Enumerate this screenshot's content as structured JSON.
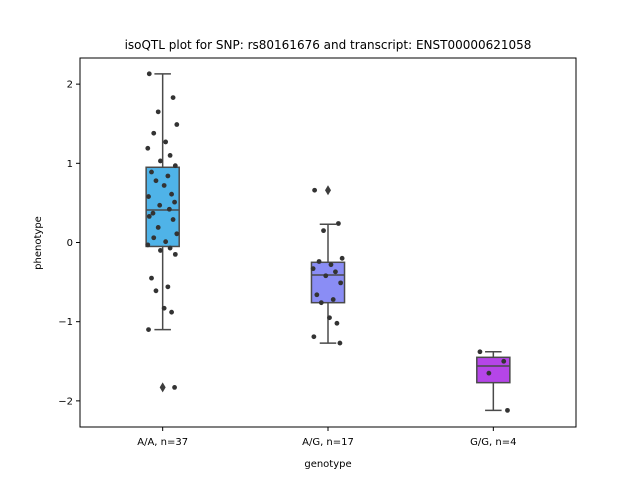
{
  "chart_data": {
    "type": "box",
    "title": "isoQTL plot for SNP: rs80161676 and transcript: ENST00000621058",
    "xlabel": "genotype",
    "ylabel": "phenotype",
    "ylim": [
      -2.33,
      2.33
    ],
    "yticks": [
      -2,
      -1,
      0,
      1,
      2
    ],
    "grid": false,
    "categories": [
      "A/A, n=37",
      "A/G, n=17",
      "G/G, n=4"
    ],
    "colors": [
      "#4fb3e8",
      "#8a8df5",
      "#b545e8"
    ],
    "boxes": [
      {
        "q1": -0.05,
        "median": 0.41,
        "q3": 0.95,
        "whisker_low": -1.1,
        "whisker_high": 2.13,
        "outliers": [
          -1.83
        ],
        "points": [
          2.13,
          1.83,
          1.65,
          1.49,
          1.38,
          1.27,
          1.19,
          1.1,
          1.03,
          0.97,
          0.89,
          0.84,
          0.78,
          0.72,
          0.61,
          0.58,
          0.51,
          0.47,
          0.42,
          0.37,
          0.33,
          0.29,
          0.19,
          0.11,
          0.06,
          0.01,
          -0.03,
          -0.07,
          -0.1,
          -0.15,
          -0.45,
          -0.56,
          -0.61,
          -0.83,
          -0.88,
          -1.1,
          -1.83
        ]
      },
      {
        "q1": -0.76,
        "median": -0.41,
        "q3": -0.25,
        "whisker_low": -1.27,
        "whisker_high": 0.23,
        "outliers": [
          0.66
        ],
        "points": [
          0.66,
          0.24,
          0.15,
          -0.2,
          -0.24,
          -0.28,
          -0.33,
          -0.37,
          -0.42,
          -0.51,
          -0.66,
          -0.72,
          -0.76,
          -0.95,
          -1.02,
          -1.19,
          -1.27
        ]
      },
      {
        "q1": -1.77,
        "median": -1.56,
        "q3": -1.45,
        "whisker_low": -2.12,
        "whisker_high": -1.38,
        "outliers": [],
        "points": [
          -1.38,
          -1.5,
          -1.65,
          -2.12
        ]
      }
    ]
  }
}
